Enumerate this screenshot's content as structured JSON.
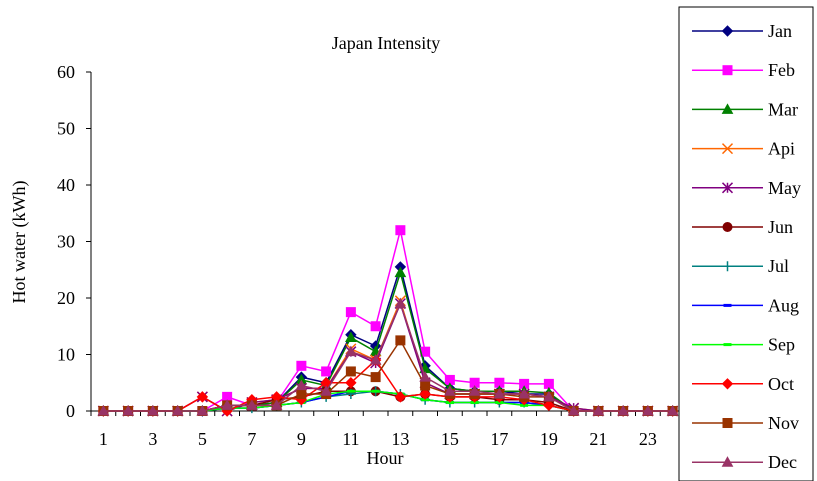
{
  "chart_data": {
    "type": "line",
    "title": "Japan Intensity",
    "xlabel": "Hour",
    "ylabel": "Hot water (kWh)",
    "ylim": [
      0,
      60
    ],
    "xlim": [
      1,
      24
    ],
    "grid": false,
    "legend_position": "right",
    "x": [
      1,
      2,
      3,
      4,
      5,
      6,
      7,
      8,
      9,
      10,
      11,
      12,
      13,
      14,
      15,
      16,
      17,
      18,
      19,
      20,
      21,
      22,
      23,
      24
    ],
    "x_tick_labels": [
      "1",
      "3",
      "5",
      "7",
      "9",
      "11",
      "13",
      "15",
      "17",
      "19",
      "21",
      "23"
    ],
    "y_tick_labels": [
      "0",
      "10",
      "20",
      "30",
      "40",
      "50",
      "60"
    ],
    "series": [
      {
        "name": "Jan",
        "color": "#000080",
        "marker": "diamond",
        "values": [
          0,
          0,
          0,
          0,
          0,
          1,
          1,
          1.5,
          6,
          5,
          13.5,
          11.5,
          25.5,
          8,
          4,
          3.5,
          3.5,
          3,
          3,
          0,
          0,
          0,
          0,
          0
        ]
      },
      {
        "name": "Feb",
        "color": "#FF00FF",
        "marker": "square",
        "values": [
          0,
          0,
          0,
          0,
          0,
          2.5,
          1,
          1.5,
          8,
          7,
          17.5,
          15,
          32,
          10.5,
          5.5,
          5,
          5,
          4.8,
          4.8,
          0,
          0,
          0,
          0,
          0
        ]
      },
      {
        "name": "Mar",
        "color": "#008000",
        "marker": "triangle",
        "values": [
          0,
          0,
          0,
          0,
          0,
          1,
          1,
          1.5,
          5.5,
          4.5,
          13,
          10.5,
          24.5,
          7.5,
          4,
          3.5,
          3.5,
          3.5,
          3.2,
          0,
          0,
          0,
          0,
          0
        ]
      },
      {
        "name": "Api",
        "color": "#FF6600",
        "marker": "x",
        "values": [
          0,
          0,
          0,
          0,
          2.5,
          0,
          1.5,
          2,
          4,
          4,
          11,
          9,
          19.5,
          5,
          3,
          3,
          3,
          3,
          2.5,
          0.5,
          0,
          0,
          0,
          0
        ]
      },
      {
        "name": "May",
        "color": "#800080",
        "marker": "star",
        "values": [
          0,
          0,
          0,
          0,
          2.5,
          0,
          1.5,
          2,
          4,
          4,
          10.5,
          8.5,
          19,
          5,
          3,
          3,
          3,
          3,
          2.5,
          0.5,
          0,
          0,
          0,
          0
        ]
      },
      {
        "name": "Jun",
        "color": "#800000",
        "marker": "circle",
        "values": [
          0,
          0,
          0,
          0,
          0,
          1,
          1,
          2,
          2.5,
          3.5,
          3.5,
          3.5,
          2.5,
          3,
          2.5,
          2.5,
          2,
          2,
          1.5,
          0,
          0,
          0,
          0,
          0
        ]
      },
      {
        "name": "Jul",
        "color": "#008080",
        "marker": "plus",
        "values": [
          0,
          0,
          0,
          0,
          0,
          0.5,
          0.5,
          1,
          1.5,
          2.5,
          3,
          3.5,
          3,
          2,
          1.5,
          1.5,
          1.5,
          1.5,
          1,
          0,
          0,
          0,
          0,
          0
        ]
      },
      {
        "name": "Aug",
        "color": "#0000FF",
        "marker": "dash",
        "values": [
          0,
          0,
          0,
          0,
          0,
          0.5,
          0.5,
          1,
          1.5,
          2.5,
          3.5,
          3.5,
          3,
          2,
          1.5,
          1.5,
          1.5,
          1.5,
          1,
          0,
          0,
          0,
          0,
          0
        ]
      },
      {
        "name": "Sep",
        "color": "#00FF00",
        "marker": "dash",
        "values": [
          0,
          0,
          0,
          0,
          0,
          0.5,
          0.5,
          1,
          1.5,
          3,
          3.5,
          3.5,
          3,
          2,
          1.5,
          1.5,
          1.5,
          1,
          1,
          0,
          0,
          0,
          0,
          0
        ]
      },
      {
        "name": "Oct",
        "color": "#FF0000",
        "marker": "diamond",
        "values": [
          0,
          0,
          0,
          0,
          2.5,
          0,
          2,
          2.5,
          2,
          5,
          5,
          9,
          2.5,
          3,
          2.5,
          2.5,
          2.5,
          2,
          1,
          0,
          0,
          0,
          0,
          0
        ]
      },
      {
        "name": "Nov",
        "color": "#993300",
        "marker": "square",
        "values": [
          0,
          0,
          0,
          0,
          0,
          1,
          1,
          1,
          3,
          3,
          7,
          6,
          12.5,
          4.5,
          3,
          3,
          3,
          2.5,
          2.5,
          0,
          0,
          0,
          0,
          0
        ]
      },
      {
        "name": "Dec",
        "color": "#993366",
        "marker": "triangle",
        "values": [
          0,
          0,
          0,
          0,
          0,
          1,
          1,
          1,
          4.5,
          3.5,
          10.5,
          9,
          19,
          6,
          3.5,
          3.5,
          3,
          3,
          2.5,
          0,
          0,
          0,
          0,
          0
        ]
      }
    ]
  }
}
